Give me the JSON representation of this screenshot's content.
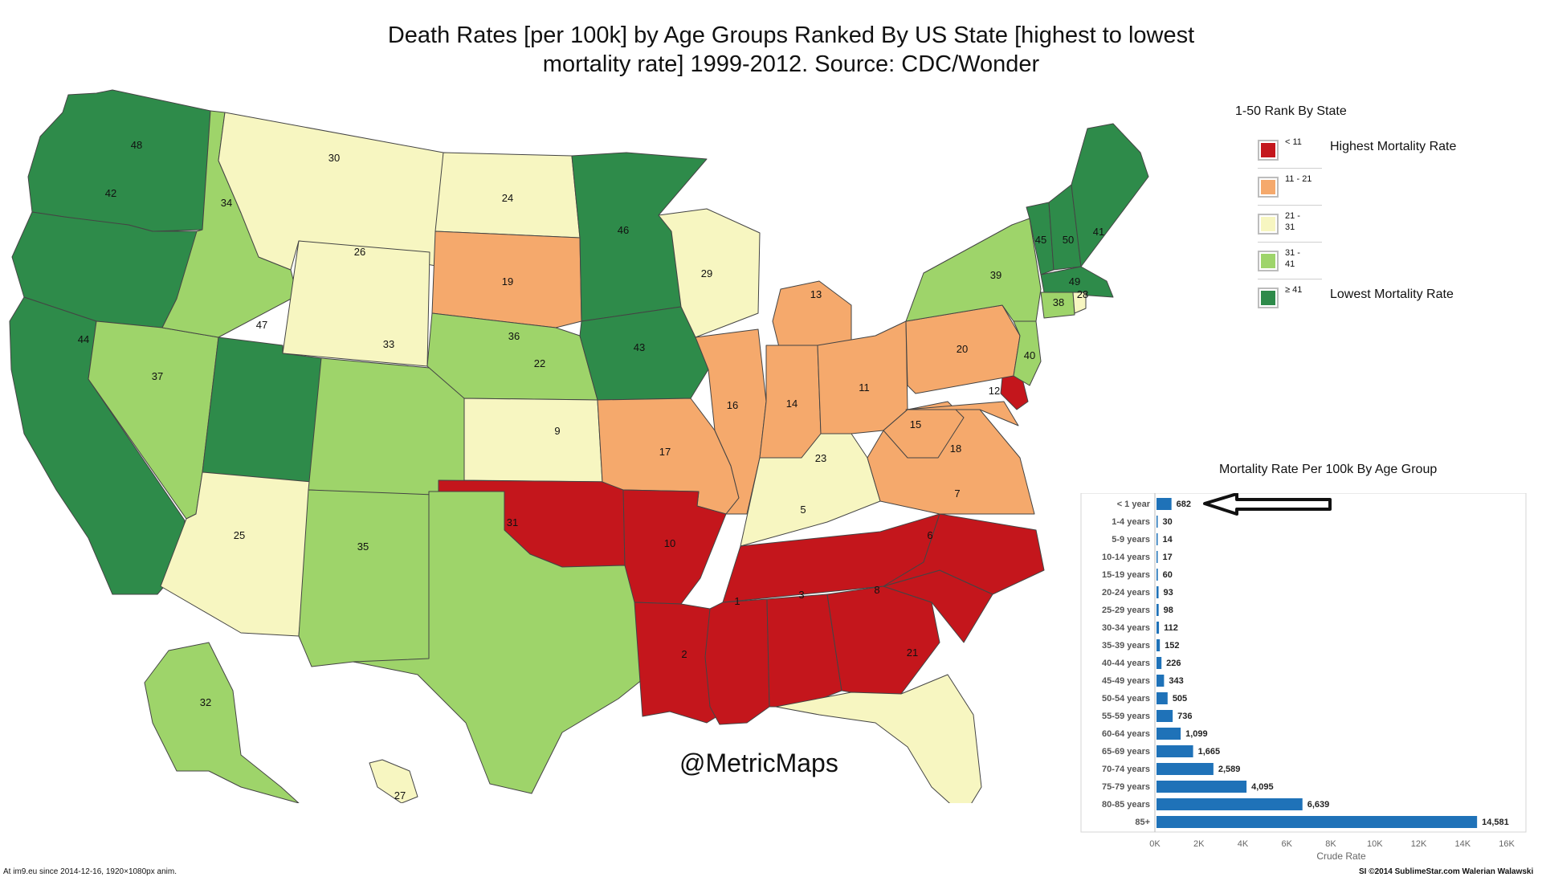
{
  "title": {
    "line1": "Death Rates [per 100k] by  Age Groups Ranked By US State [highest to lowest",
    "line2": "mortality rate] 1999-2012.  Source: CDC/Wonder"
  },
  "watermark": "@MetricMaps",
  "colors": {
    "red": "#c4161c",
    "orange": "#f5a96c",
    "pale": "#f7f6c1",
    "lightgreen": "#9ed46a",
    "darkgreen": "#2e8b4a",
    "bar": "#1f72b8"
  },
  "legend": {
    "title": "1-50 Rank By State",
    "items": [
      {
        "range": "< 11",
        "color_key": "red",
        "note": "Highest Mortality Rate"
      },
      {
        "range": "11 - 21",
        "color_key": "orange",
        "note": ""
      },
      {
        "range": "21 - 31",
        "color_key": "pale",
        "note": ""
      },
      {
        "range": "31 - 41",
        "color_key": "lightgreen",
        "note": ""
      },
      {
        "range": "≥ 41",
        "color_key": "darkgreen",
        "note": "Lowest Mortality Rate"
      }
    ]
  },
  "states": [
    {
      "name": "Washington",
      "rank": "48"
    },
    {
      "name": "Oregon",
      "rank": "42"
    },
    {
      "name": "California",
      "rank": "44"
    },
    {
      "name": "Nevada",
      "rank": "37"
    },
    {
      "name": "Idaho",
      "rank": "34"
    },
    {
      "name": "Montana",
      "rank": "30"
    },
    {
      "name": "Wyoming",
      "rank": "26"
    },
    {
      "name": "Utah",
      "rank": "47"
    },
    {
      "name": "Arizona",
      "rank": "25"
    },
    {
      "name": "Colorado",
      "rank": "33"
    },
    {
      "name": "New Mexico",
      "rank": "35"
    },
    {
      "name": "North Dakota",
      "rank": "24"
    },
    {
      "name": "South Dakota",
      "rank": "19"
    },
    {
      "name": "Nebraska",
      "rank": "36"
    },
    {
      "name": "Kansas",
      "rank": "22"
    },
    {
      "name": "Oklahoma",
      "rank": "9"
    },
    {
      "name": "Texas",
      "rank": "31"
    },
    {
      "name": "Minnesota",
      "rank": "46"
    },
    {
      "name": "Iowa",
      "rank": "43"
    },
    {
      "name": "Missouri",
      "rank": "17"
    },
    {
      "name": "Arkansas",
      "rank": "10"
    },
    {
      "name": "Louisiana",
      "rank": "2"
    },
    {
      "name": "Wisconsin",
      "rank": "29"
    },
    {
      "name": "Illinois",
      "rank": "16"
    },
    {
      "name": "Michigan",
      "rank": "13"
    },
    {
      "name": "Indiana",
      "rank": "14"
    },
    {
      "name": "Ohio",
      "rank": "11"
    },
    {
      "name": "Kentucky",
      "rank": "23"
    },
    {
      "name": "Tennessee",
      "rank": "5"
    },
    {
      "name": "Mississippi",
      "rank": "1"
    },
    {
      "name": "Alabama",
      "rank": "3"
    },
    {
      "name": "Georgia",
      "rank": "8"
    },
    {
      "name": "Florida",
      "rank": "21"
    },
    {
      "name": "South Carolina",
      "rank": "6"
    },
    {
      "name": "North Carolina",
      "rank": "7"
    },
    {
      "name": "Virginia",
      "rank": "18"
    },
    {
      "name": "West Virginia",
      "rank": "15"
    },
    {
      "name": "Maryland",
      "rank": "12"
    },
    {
      "name": "Delaware",
      "rank": ""
    },
    {
      "name": "Pennsylvania",
      "rank": "20"
    },
    {
      "name": "New Jersey",
      "rank": "40"
    },
    {
      "name": "New York",
      "rank": "39"
    },
    {
      "name": "Vermont",
      "rank": "45"
    },
    {
      "name": "New Hampshire",
      "rank": "50"
    },
    {
      "name": "Maine",
      "rank": "41"
    },
    {
      "name": "Massachusetts",
      "rank": "49"
    },
    {
      "name": "Connecticut",
      "rank": "38"
    },
    {
      "name": "Rhode Island",
      "rank": "28"
    },
    {
      "name": "Alaska",
      "rank": "32"
    },
    {
      "name": "Hawaii",
      "rank": "27"
    }
  ],
  "chart_data": {
    "type": "bar",
    "orientation": "horizontal",
    "title": "Mortality Rate Per 100k By Age Group",
    "xlabel": "Crude Rate",
    "categories": [
      "< 1 year",
      "1-4 years",
      "5-9 years",
      "10-14 years",
      "15-19 years",
      "20-24 years",
      "25-29 years",
      "30-34 years",
      "35-39 years",
      "40-44 years",
      "45-49 years",
      "50-54 years",
      "55-59 years",
      "60-64 years",
      "65-69 years",
      "70-74 years",
      "75-79 years",
      "80-85 years",
      "85+"
    ],
    "values": [
      682,
      30,
      14,
      17,
      60,
      93,
      98,
      112,
      152,
      226,
      343,
      505,
      736,
      1099,
      1665,
      2589,
      4095,
      6639,
      14581
    ],
    "value_labels": [
      "682",
      "30",
      "14",
      "17",
      "60",
      "93",
      "98",
      "112",
      "152",
      "226",
      "343",
      "505",
      "736",
      "1,099",
      "1,665",
      "2,589",
      "4,095",
      "6,639",
      "14,581"
    ],
    "xticks": [
      "0K",
      "2K",
      "4K",
      "6K",
      "8K",
      "10K",
      "12K",
      "14K",
      "16K"
    ],
    "xlim": [
      0,
      16000
    ],
    "annotation": "arrow pointing at < 1 year bar"
  },
  "footer": {
    "left": "At im9.eu since 2014-12-16, 1920×1080px anim.",
    "right": "SI ©2014 SublimeStar.com Walerian Walawski"
  }
}
